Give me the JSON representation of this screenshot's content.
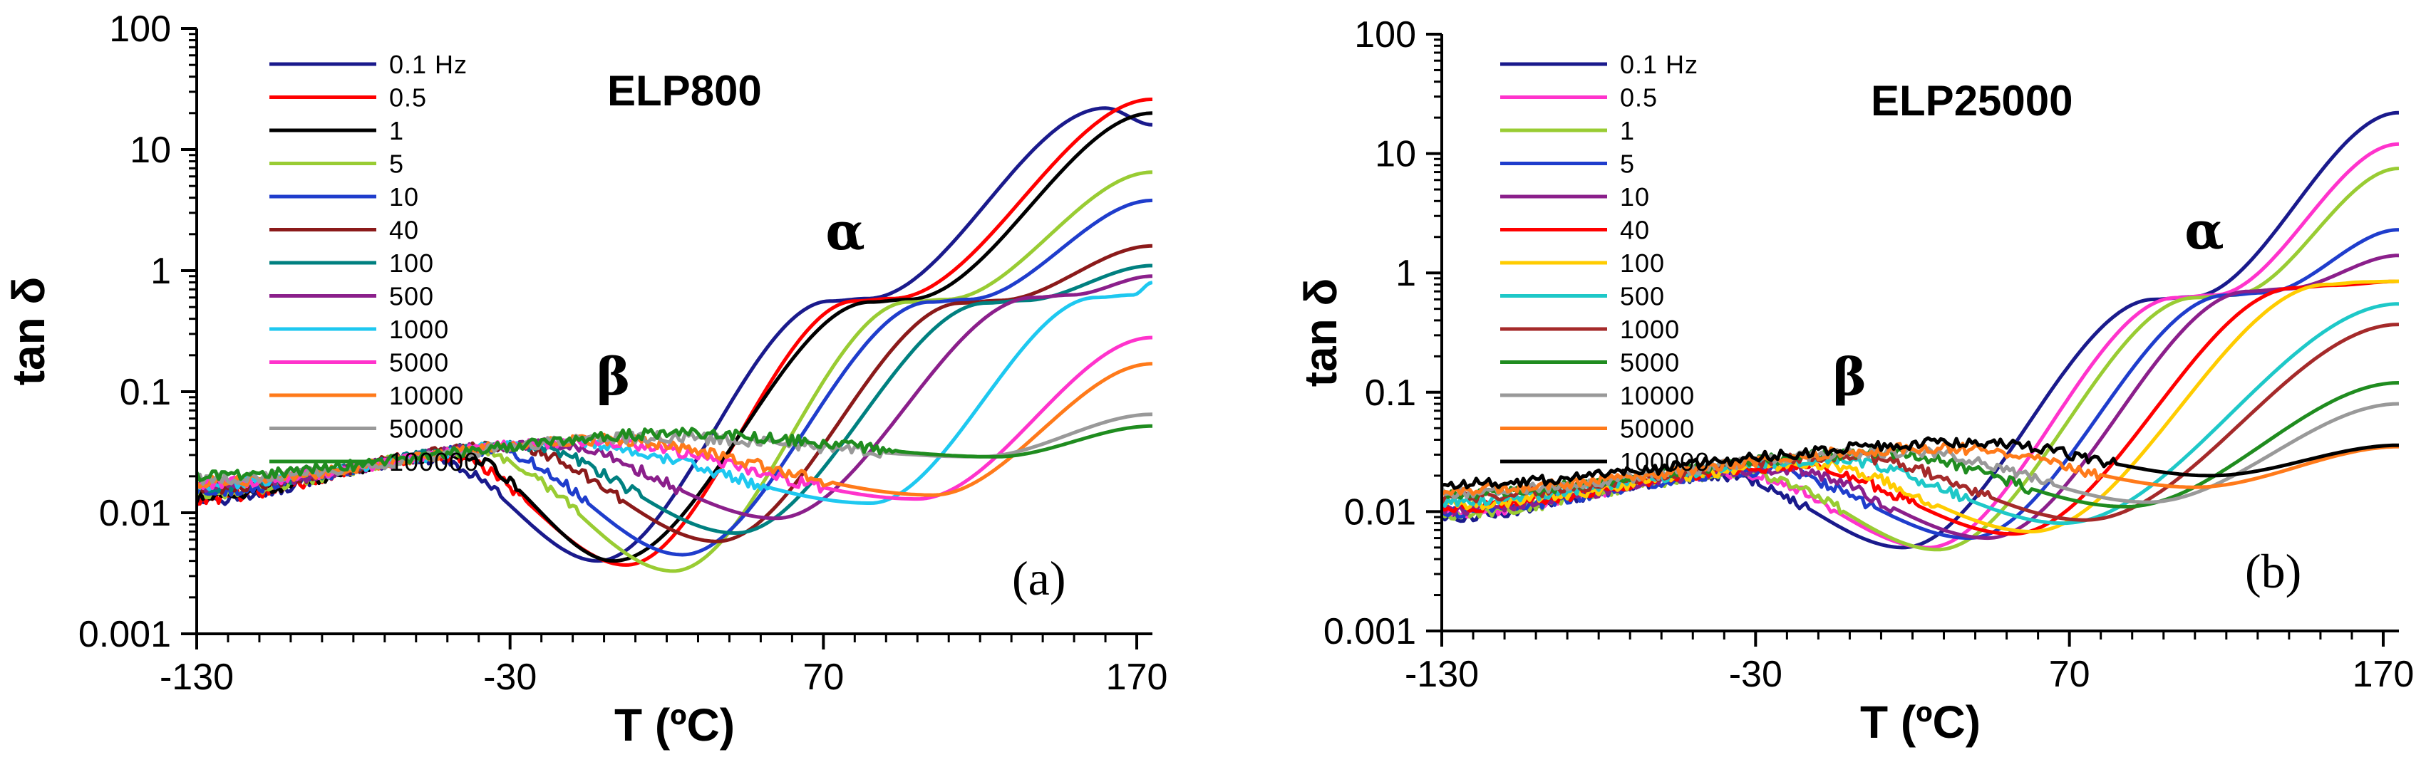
{
  "chart_data": [
    {
      "type": "line",
      "panel": "(a)",
      "title": "ELP800",
      "xlabel": "T (ºC)",
      "ylabel": "tan δ",
      "yscale": "log",
      "xlim": [
        -130,
        175
      ],
      "ylim": [
        0.001,
        100
      ],
      "xticks": [
        "-130",
        "-30",
        "70",
        "170"
      ],
      "xtick_values": [
        -130,
        -30,
        70,
        170
      ],
      "yticks": [
        "100",
        "10",
        "1",
        "0.1",
        "0.01",
        "0.001"
      ],
      "ytick_values": [
        100,
        10,
        1,
        0.1,
        0.01,
        0.001
      ],
      "annotations": [
        {
          "text": "α",
          "x": 77,
          "y": 1.5
        },
        {
          "text": "β",
          "x": 3,
          "y": 0.095
        }
      ],
      "series": [
        {
          "name": "0.1 Hz",
          "color": "#1a1a8c",
          "beta_peak": [
            -55,
            0.028
          ],
          "beta_min": [
            -2,
            0.004
          ],
          "alpha_plateau": [
            80,
            0.56
          ],
          "alpha_peak": [
            160,
            22
          ],
          "end_value": 16
        },
        {
          "name": "0.5",
          "color": "#ff0000",
          "beta_peak": [
            -50,
            0.029
          ],
          "beta_min": [
            7,
            0.0037
          ],
          "alpha_plateau": [
            88,
            0.56
          ],
          "end_value": 26
        },
        {
          "name": "1",
          "color": "#000000",
          "beta_peak": [
            -46,
            0.03
          ],
          "beta_min": [
            3,
            0.004
          ],
          "alpha_plateau": [
            93,
            0.55
          ],
          "end_value": 20
        },
        {
          "name": "5",
          "color": "#99cc33",
          "beta_peak": [
            -40,
            0.032
          ],
          "beta_min": [
            22,
            0.0033
          ],
          "alpha_plateau": [
            105,
            0.55
          ],
          "end_value": 6.5
        },
        {
          "name": "10",
          "color": "#1f3dcc",
          "beta_peak": [
            -36,
            0.033
          ],
          "beta_min": [
            25,
            0.0045
          ],
          "alpha_plateau": [
            112,
            0.55
          ],
          "end_value": 3.8
        },
        {
          "name": "40",
          "color": "#8b1a1a",
          "beta_peak": [
            -30,
            0.035
          ],
          "beta_min": [
            36,
            0.0058
          ],
          "alpha_plateau": [
            122,
            0.54
          ],
          "end_value": 1.6
        },
        {
          "name": "100",
          "color": "#008080",
          "beta_peak": [
            -26,
            0.036
          ],
          "beta_min": [
            42,
            0.0068
          ],
          "alpha_plateau": [
            130,
            0.54
          ],
          "end_value": 1.1
        },
        {
          "name": "500",
          "color": "#8b1f8b",
          "beta_peak": [
            -18,
            0.037
          ],
          "beta_min": [
            55,
            0.009
          ],
          "alpha_plateau": [
            145,
            0.6
          ],
          "end_value": 0.9
        },
        {
          "name": "1000",
          "color": "#1ec8f0",
          "beta_peak": [
            -12,
            0.038
          ],
          "beta_min": [
            85,
            0.012
          ],
          "alpha_plateau": [
            165,
            0.6
          ],
          "end_value": 0.8
        },
        {
          "name": "5000",
          "color": "#ff33cc",
          "beta_peak": [
            -5,
            0.039
          ],
          "beta_min": [
            100,
            0.013
          ],
          "end_value": 0.28
        },
        {
          "name": "10000",
          "color": "#ff7a1a",
          "beta_peak": [
            0,
            0.04
          ],
          "beta_min": [
            105,
            0.014
          ],
          "end_value": 0.17
        },
        {
          "name": "50000",
          "color": "#999999",
          "beta_peak": [
            15,
            0.042
          ],
          "beta_min": [
            120,
            0.029
          ],
          "end_value": 0.065
        },
        {
          "name": "100000",
          "color": "#1f8c1f",
          "beta_peak": [
            25,
            0.045
          ],
          "beta_min": [
            125,
            0.029
          ],
          "end_value": 0.052
        }
      ]
    },
    {
      "type": "line",
      "panel": "(b)",
      "title": "ELP25000",
      "xlabel": "T (ºC)",
      "ylabel": "tan δ",
      "yscale": "log",
      "xlim": [
        -130,
        175
      ],
      "ylim": [
        0.001,
        100
      ],
      "xticks": [
        "-130",
        "-30",
        "70",
        "170"
      ],
      "xtick_values": [
        -130,
        -30,
        70,
        170
      ],
      "yticks": [
        "100",
        "10",
        "1",
        "0.1",
        "0.01",
        "0.001"
      ],
      "ytick_values": [
        100,
        10,
        1,
        0.1,
        0.01,
        0.001
      ],
      "annotations": [
        {
          "text": "α",
          "x": 113,
          "y": 1.6
        },
        {
          "text": "β",
          "x": 0,
          "y": 0.095
        }
      ],
      "series": [
        {
          "name": "0.1 Hz",
          "color": "#1a1a8c",
          "beta_peak": [
            -40,
            0.02
          ],
          "beta_min": [
            17,
            0.005
          ],
          "alpha_plateau": [
            105,
            0.6
          ],
          "end_value": 22
        },
        {
          "name": "0.5",
          "color": "#ff33cc",
          "beta_peak": [
            -35,
            0.021
          ],
          "beta_min": [
            25,
            0.005
          ],
          "alpha_plateau": [
            112,
            0.62
          ],
          "end_value": 12
        },
        {
          "name": "1",
          "color": "#99cc33",
          "beta_peak": [
            -32,
            0.021
          ],
          "beta_min": [
            28,
            0.0048
          ],
          "alpha_plateau": [
            118,
            0.62
          ],
          "end_value": 7.5
        },
        {
          "name": "5",
          "color": "#1f3dcc",
          "beta_peak": [
            -26,
            0.022
          ],
          "beta_min": [
            38,
            0.006
          ],
          "alpha_plateau": [
            128,
            0.65
          ],
          "end_value": 2.3
        },
        {
          "name": "10",
          "color": "#8b1f8b",
          "beta_peak": [
            -22,
            0.023
          ],
          "beta_min": [
            44,
            0.006
          ],
          "alpha_plateau": [
            135,
            0.7
          ],
          "end_value": 1.4
        },
        {
          "name": "40",
          "color": "#ff0000",
          "beta_peak": [
            -16,
            0.024
          ],
          "beta_min": [
            52,
            0.0065
          ],
          "alpha_plateau": [
            150,
            0.75
          ],
          "end_value": 0.85
        },
        {
          "name": "100",
          "color": "#ffcc00",
          "beta_peak": [
            -12,
            0.025
          ],
          "beta_min": [
            58,
            0.0068
          ],
          "alpha_plateau": [
            160,
            0.8
          ],
          "end_value": 0.85
        },
        {
          "name": "500",
          "color": "#1ec8c8",
          "beta_peak": [
            -5,
            0.027
          ],
          "beta_min": [
            68,
            0.008
          ],
          "end_value": 0.55
        },
        {
          "name": "1000",
          "color": "#a52a2a",
          "beta_peak": [
            0,
            0.029
          ],
          "beta_min": [
            75,
            0.0085
          ],
          "end_value": 0.37
        },
        {
          "name": "5000",
          "color": "#1f8c1f",
          "beta_peak": [
            10,
            0.031
          ],
          "beta_min": [
            88,
            0.011
          ],
          "end_value": 0.12
        },
        {
          "name": "10000",
          "color": "#999999",
          "beta_peak": [
            18,
            0.032
          ],
          "beta_min": [
            95,
            0.012
          ],
          "end_value": 0.08
        },
        {
          "name": "50000",
          "color": "#ff7a1a",
          "beta_peak": [
            30,
            0.034
          ],
          "beta_min": [
            110,
            0.016
          ],
          "end_value": 0.035
        },
        {
          "name": "100000",
          "color": "#000000",
          "beta_peak": [
            40,
            0.038
          ],
          "beta_min": [
            115,
            0.02
          ],
          "end_value": 0.036
        }
      ]
    }
  ]
}
